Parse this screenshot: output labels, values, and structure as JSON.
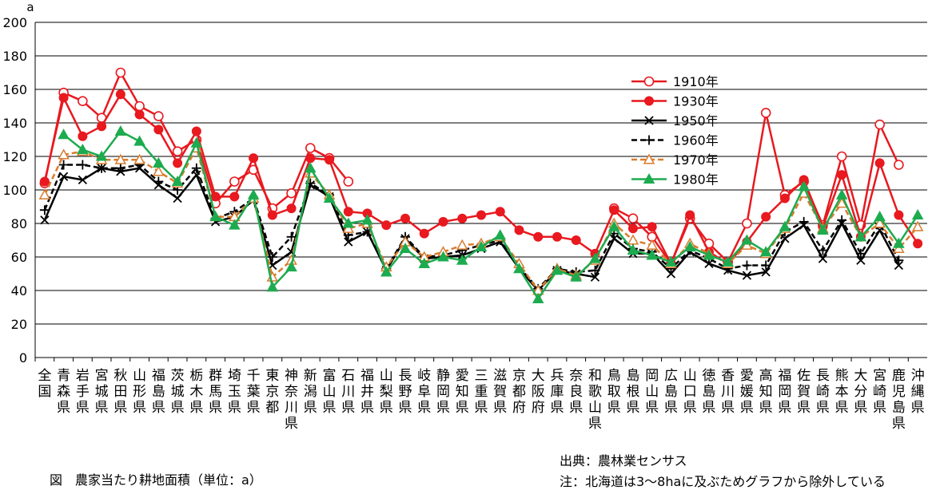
{
  "chart_data": {
    "type": "line",
    "y_unit_label": "a",
    "ylim": [
      0,
      200
    ],
    "y_ticks": [
      0,
      20,
      40,
      60,
      80,
      100,
      120,
      140,
      160,
      180,
      200
    ],
    "grid": true,
    "legend_position": "top-right",
    "categories": [
      "全国",
      "青森県",
      "岩手県",
      "宮城県",
      "秋田県",
      "山形県",
      "福島県",
      "茨城県",
      "栃木県",
      "群馬県",
      "埼玉県",
      "千葉県",
      "東京都",
      "神奈川県",
      "新潟県",
      "富山県",
      "石川県",
      "福井県",
      "山梨県",
      "長野県",
      "岐阜県",
      "静岡県",
      "愛知県",
      "三重県",
      "滋賀県",
      "京都府",
      "大阪府",
      "兵庫県",
      "奈良県",
      "和歌山県",
      "鳥取県",
      "島根県",
      "岡山県",
      "広島県",
      "山口県",
      "徳島県",
      "香川県",
      "愛媛県",
      "高知県",
      "福岡県",
      "佐賀県",
      "長崎県",
      "熊本県",
      "大分県",
      "宮崎県",
      "鹿児島県",
      "沖縄県"
    ],
    "series": [
      {
        "name": "1910年",
        "color": "#e8191f",
        "dash": "solid",
        "marker": "open-circle",
        "values": [
          104,
          158,
          153,
          143,
          170,
          150,
          144,
          123,
          130,
          92,
          105,
          112,
          89,
          98,
          125,
          119,
          105,
          null,
          null,
          null,
          null,
          null,
          null,
          null,
          null,
          null,
          null,
          null,
          null,
          null,
          89,
          83,
          72,
          56,
          83,
          68,
          57,
          80,
          146,
          97,
          105,
          79,
          120,
          79,
          139,
          115,
          null
        ]
      },
      {
        "name": "1930年",
        "color": "#e8191f",
        "dash": "solid",
        "marker": "filled-circle",
        "values": [
          105,
          155,
          132,
          138,
          157,
          145,
          136,
          116,
          135,
          96,
          96,
          119,
          85,
          89,
          119,
          118,
          87,
          86,
          79,
          83,
          74,
          81,
          83,
          85,
          87,
          76,
          72,
          72,
          70,
          62,
          88,
          77,
          78,
          56,
          85,
          63,
          56,
          69,
          84,
          95,
          106,
          78,
          109,
          72,
          116,
          85,
          68
        ]
      },
      {
        "name": "1950年",
        "color": "#000000",
        "dash": "solid",
        "marker": "x",
        "values": [
          82,
          108,
          106,
          113,
          111,
          113,
          103,
          95,
          109,
          81,
          84,
          94,
          55,
          63,
          103,
          96,
          69,
          75,
          52,
          71,
          59,
          60,
          61,
          65,
          69,
          53,
          40,
          52,
          50,
          48,
          71,
          62,
          62,
          50,
          63,
          56,
          52,
          49,
          51,
          71,
          79,
          59,
          80,
          58,
          76,
          55,
          null
        ]
      },
      {
        "name": "1960年",
        "color": "#000000",
        "dash": "dashed",
        "marker": "plus",
        "values": [
          88,
          115,
          115,
          113,
          113,
          115,
          105,
          100,
          113,
          83,
          87,
          95,
          60,
          72,
          104,
          97,
          73,
          75,
          53,
          72,
          60,
          61,
          64,
          67,
          70,
          54,
          41,
          53,
          51,
          52,
          74,
          65,
          63,
          53,
          64,
          59,
          53,
          55,
          55,
          75,
          81,
          64,
          82,
          62,
          80,
          58,
          null
        ]
      },
      {
        "name": "1970年",
        "color": "#d97c2e",
        "dash": "dashed",
        "marker": "open-triangle",
        "values": [
          97,
          121,
          123,
          118,
          118,
          118,
          111,
          104,
          125,
          84,
          84,
          95,
          48,
          58,
          110,
          97,
          77,
          80,
          54,
          69,
          60,
          63,
          67,
          68,
          72,
          56,
          40,
          53,
          49,
          58,
          80,
          70,
          67,
          56,
          68,
          62,
          56,
          67,
          62,
          77,
          98,
          77,
          92,
          72,
          80,
          65,
          78
        ]
      },
      {
        "name": "1980年",
        "color": "#1dab4f",
        "dash": "solid",
        "marker": "filled-triangle",
        "values": [
          null,
          133,
          124,
          120,
          135,
          129,
          116,
          105,
          128,
          84,
          79,
          97,
          42,
          54,
          113,
          95,
          80,
          82,
          51,
          65,
          56,
          60,
          58,
          66,
          73,
          53,
          35,
          52,
          48,
          59,
          78,
          64,
          61,
          57,
          66,
          61,
          57,
          70,
          63,
          78,
          102,
          76,
          97,
          72,
          84,
          68,
          85
        ]
      }
    ]
  },
  "captions": {
    "figure": "図　農家当たり耕地面積（単位：a）",
    "source": "出典：農林業センサス",
    "note": "注：北海道は3～8haに及ぶためグラフから除外している"
  }
}
